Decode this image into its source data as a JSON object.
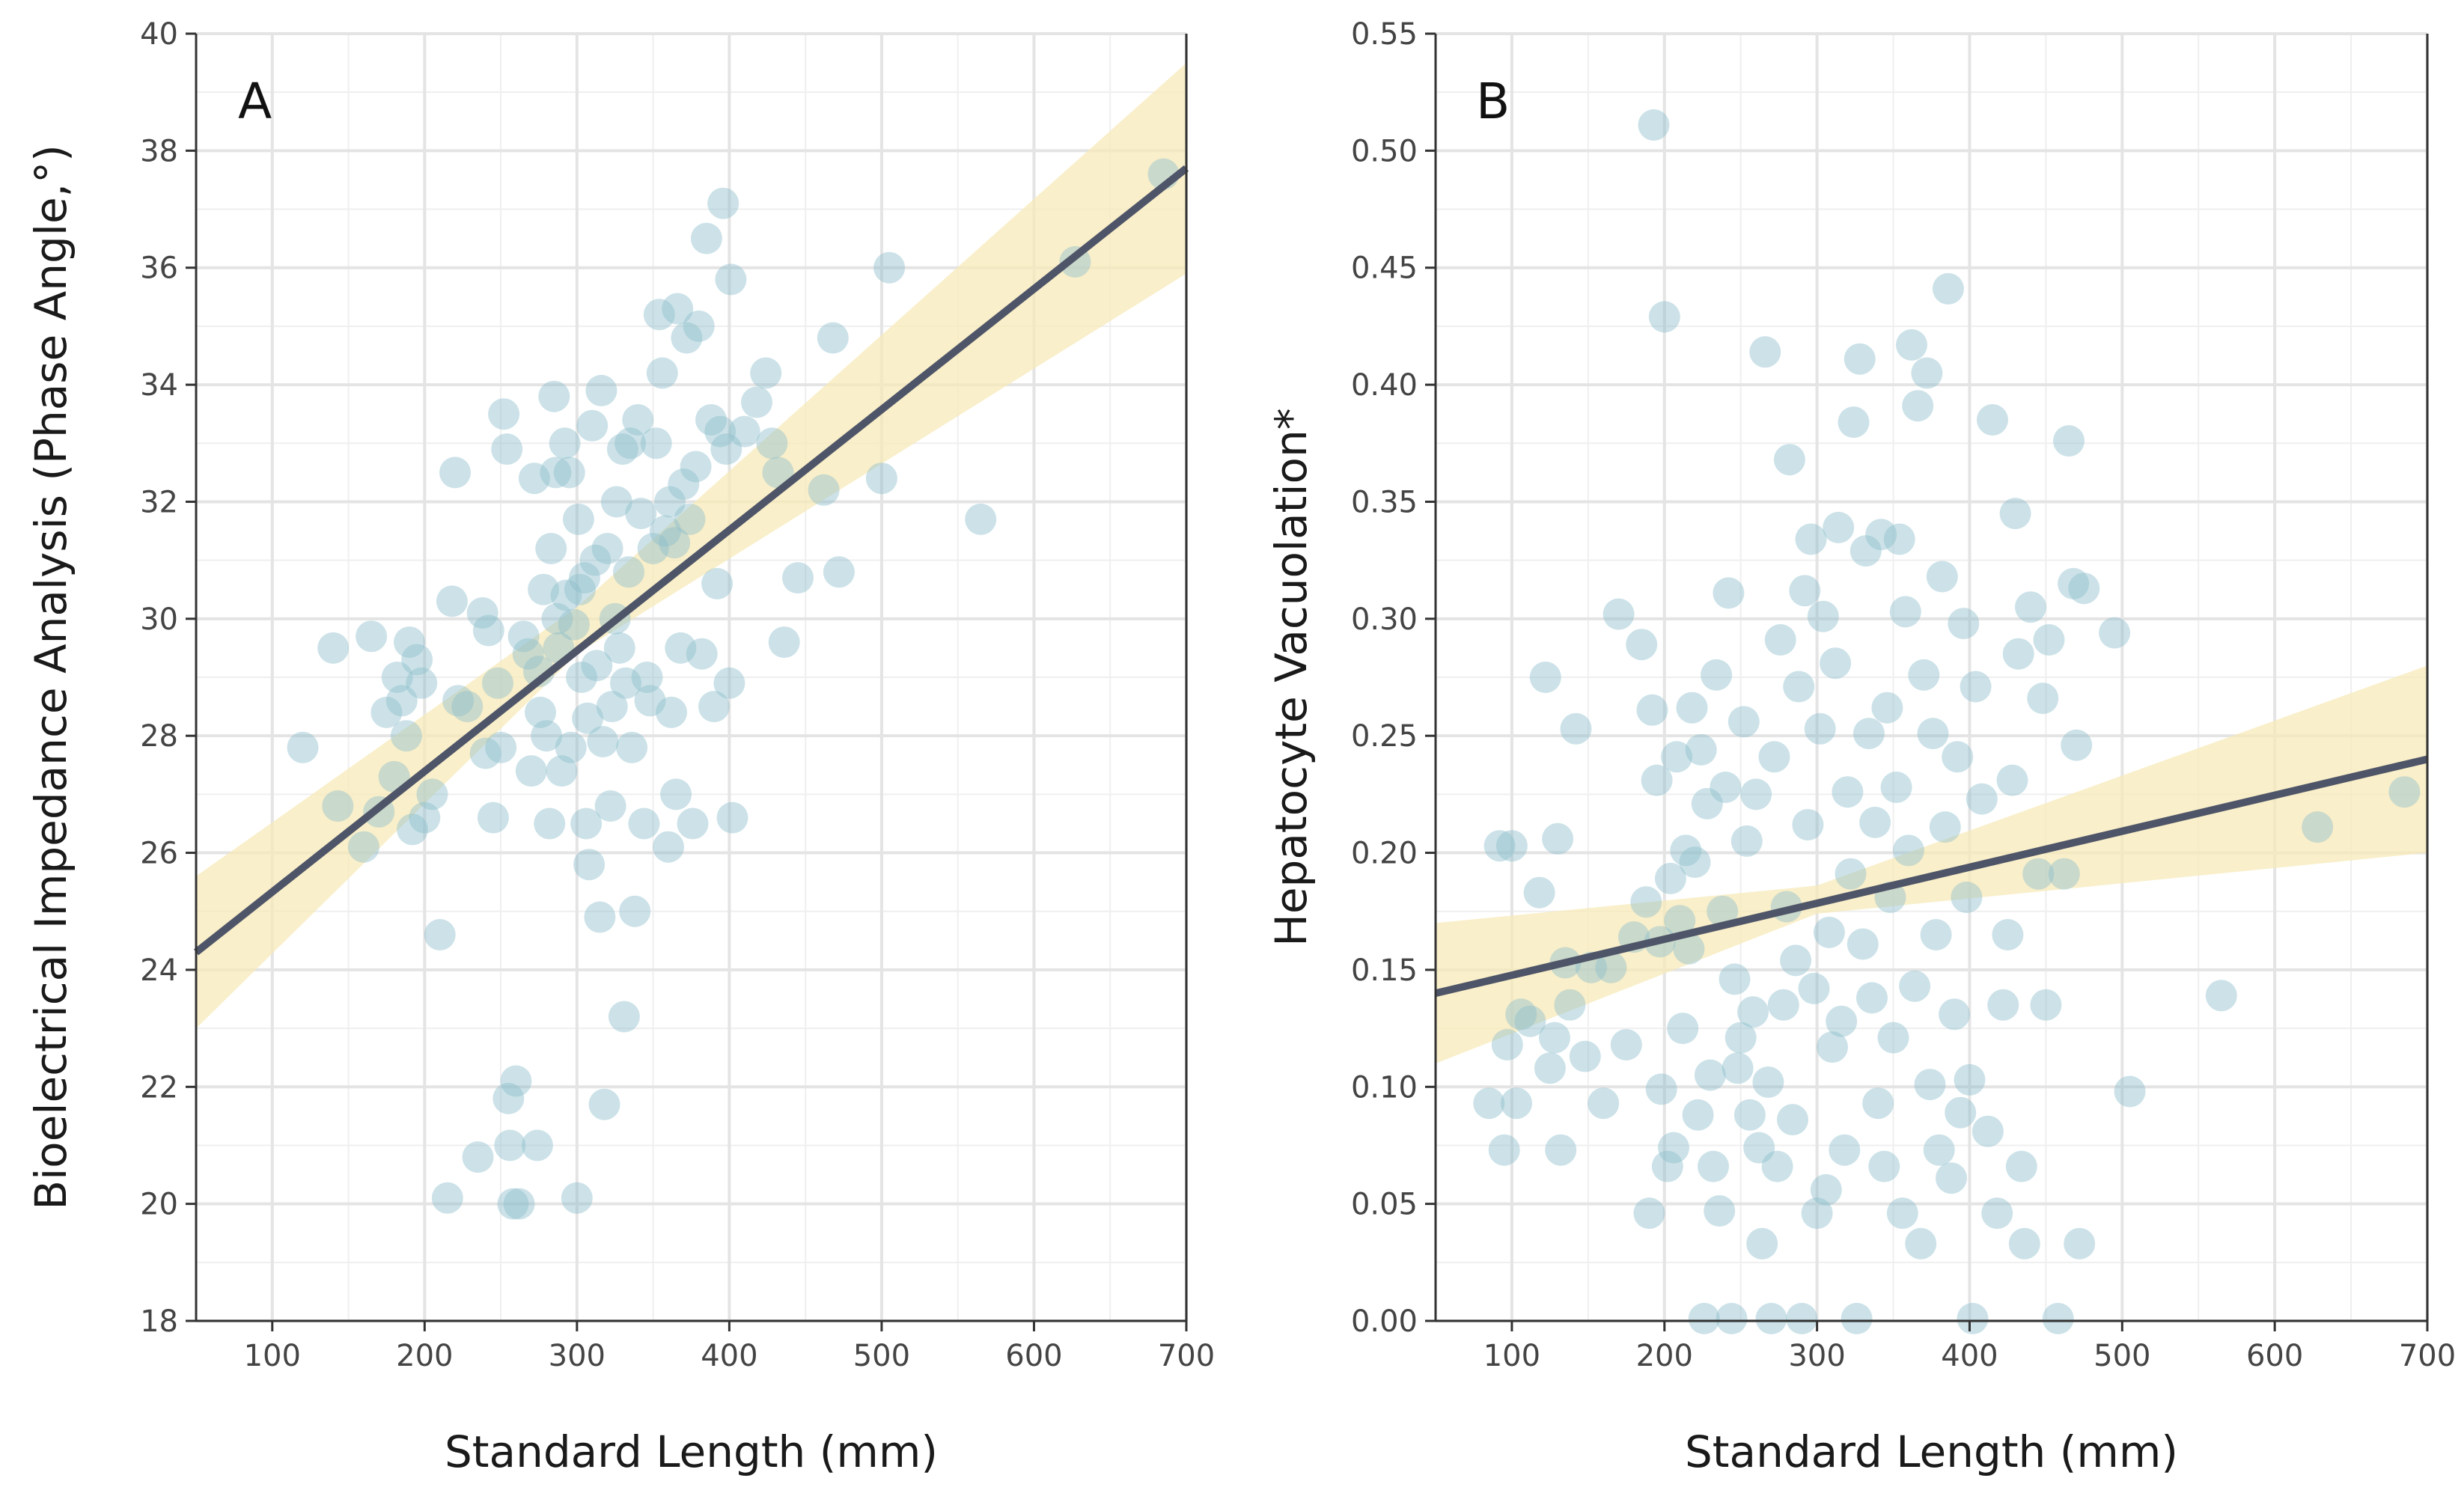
{
  "chart_data": [
    {
      "type": "scatter",
      "panel_label": "A",
      "xlabel": "Standard Length (mm)",
      "ylabel": "Bioelectrical Impedance Analysis (Phase Angle,°)",
      "xlim": [
        50,
        700
      ],
      "ylim": [
        18,
        40
      ],
      "x_ticks": [
        100,
        200,
        300,
        400,
        500,
        600,
        700
      ],
      "y_ticks": [
        18,
        20,
        22,
        24,
        26,
        28,
        30,
        32,
        34,
        36,
        38,
        40
      ],
      "grid": true,
      "point_color": "#8fbfcc",
      "line_color": "#4f5568",
      "band_color": "#f7e9b8",
      "regression": {
        "x": [
          50,
          700
        ],
        "y": [
          24.3,
          37.7
        ]
      },
      "confidence_band": {
        "x": [
          50,
          300,
          700
        ],
        "lower": [
          23.0,
          29.4,
          35.9
        ],
        "upper": [
          25.6,
          30.2,
          39.5
        ]
      },
      "points": [
        [
          120,
          27.8
        ],
        [
          140,
          29.5
        ],
        [
          143,
          26.8
        ],
        [
          160,
          26.1
        ],
        [
          165,
          29.7
        ],
        [
          170,
          26.7
        ],
        [
          175,
          28.4
        ],
        [
          180,
          27.3
        ],
        [
          182,
          29.0
        ],
        [
          185,
          28.6
        ],
        [
          188,
          28.0
        ],
        [
          190,
          29.6
        ],
        [
          192,
          26.4
        ],
        [
          195,
          29.3
        ],
        [
          198,
          28.9
        ],
        [
          200,
          26.6
        ],
        [
          205,
          27.0
        ],
        [
          210,
          24.6
        ],
        [
          215,
          20.1
        ],
        [
          218,
          30.3
        ],
        [
          220,
          32.5
        ],
        [
          222,
          28.6
        ],
        [
          228,
          28.5
        ],
        [
          235,
          20.8
        ],
        [
          238,
          30.1
        ],
        [
          240,
          27.7
        ],
        [
          242,
          29.8
        ],
        [
          245,
          26.6
        ],
        [
          248,
          28.9
        ],
        [
          250,
          27.8
        ],
        [
          252,
          33.5
        ],
        [
          254,
          32.9
        ],
        [
          255,
          21.8
        ],
        [
          256,
          21.0
        ],
        [
          258,
          20.0
        ],
        [
          260,
          22.1
        ],
        [
          262,
          20.0
        ],
        [
          265,
          29.7
        ],
        [
          268,
          29.4
        ],
        [
          270,
          27.4
        ],
        [
          272,
          32.4
        ],
        [
          274,
          21.0
        ],
        [
          275,
          29.1
        ],
        [
          276,
          28.4
        ],
        [
          278,
          30.5
        ],
        [
          280,
          28.0
        ],
        [
          282,
          26.5
        ],
        [
          283,
          31.2
        ],
        [
          285,
          33.8
        ],
        [
          286,
          32.5
        ],
        [
          287,
          30.0
        ],
        [
          288,
          29.5
        ],
        [
          290,
          27.4
        ],
        [
          292,
          33.0
        ],
        [
          293,
          30.4
        ],
        [
          295,
          32.5
        ],
        [
          296,
          27.8
        ],
        [
          298,
          29.9
        ],
        [
          300,
          20.1
        ],
        [
          301,
          31.7
        ],
        [
          302,
          30.5
        ],
        [
          303,
          29.0
        ],
        [
          305,
          30.7
        ],
        [
          306,
          26.5
        ],
        [
          307,
          28.3
        ],
        [
          308,
          25.8
        ],
        [
          310,
          33.3
        ],
        [
          312,
          31.0
        ],
        [
          313,
          29.2
        ],
        [
          315,
          24.9
        ],
        [
          316,
          33.9
        ],
        [
          317,
          27.9
        ],
        [
          318,
          21.7
        ],
        [
          320,
          31.2
        ],
        [
          322,
          26.8
        ],
        [
          323,
          28.5
        ],
        [
          325,
          30.0
        ],
        [
          326,
          32.0
        ],
        [
          328,
          29.5
        ],
        [
          330,
          32.9
        ],
        [
          331,
          23.2
        ],
        [
          332,
          28.9
        ],
        [
          334,
          30.8
        ],
        [
          335,
          33.0
        ],
        [
          336,
          27.8
        ],
        [
          338,
          25.0
        ],
        [
          340,
          33.4
        ],
        [
          342,
          31.8
        ],
        [
          344,
          26.5
        ],
        [
          346,
          29.0
        ],
        [
          348,
          28.6
        ],
        [
          350,
          31.2
        ],
        [
          352,
          33.0
        ],
        [
          354,
          35.2
        ],
        [
          356,
          34.2
        ],
        [
          358,
          31.5
        ],
        [
          360,
          26.1
        ],
        [
          361,
          32.0
        ],
        [
          362,
          28.4
        ],
        [
          364,
          31.3
        ],
        [
          365,
          27.0
        ],
        [
          366,
          35.3
        ],
        [
          368,
          29.5
        ],
        [
          370,
          32.3
        ],
        [
          372,
          34.8
        ],
        [
          374,
          31.7
        ],
        [
          376,
          26.5
        ],
        [
          378,
          32.6
        ],
        [
          380,
          35.0
        ],
        [
          382,
          29.4
        ],
        [
          385,
          36.5
        ],
        [
          388,
          33.4
        ],
        [
          390,
          28.5
        ],
        [
          392,
          30.6
        ],
        [
          394,
          33.2
        ],
        [
          396,
          37.1
        ],
        [
          398,
          32.9
        ],
        [
          400,
          28.9
        ],
        [
          401,
          35.8
        ],
        [
          402,
          26.6
        ],
        [
          410,
          33.2
        ],
        [
          418,
          33.7
        ],
        [
          424,
          34.2
        ],
        [
          428,
          33.0
        ],
        [
          432,
          32.5
        ],
        [
          436,
          29.6
        ],
        [
          445,
          30.7
        ],
        [
          462,
          32.2
        ],
        [
          468,
          34.8
        ],
        [
          472,
          30.8
        ],
        [
          500,
          32.4
        ],
        [
          505,
          36.0
        ],
        [
          565,
          31.7
        ],
        [
          627,
          36.1
        ],
        [
          685,
          37.6
        ]
      ]
    },
    {
      "type": "scatter",
      "panel_label": "B",
      "xlabel": "Standard Length (mm)",
      "ylabel": "Hepatocyte Vacuolation*",
      "xlim": [
        50,
        700
      ],
      "ylim": [
        0,
        0.55
      ],
      "x_ticks": [
        100,
        200,
        300,
        400,
        500,
        600,
        700
      ],
      "y_ticks": [
        0.0,
        0.05,
        0.1,
        0.15,
        0.2,
        0.25,
        0.3,
        0.35,
        0.4,
        0.45,
        0.5,
        0.55
      ],
      "y_tick_labels": [
        "0.00",
        "0.05",
        "0.10",
        "0.15",
        "0.20",
        "0.25",
        "0.30",
        "0.35",
        "0.40",
        "0.45",
        "0.50",
        "0.55"
      ],
      "grid": true,
      "point_color": "#8fbfcc",
      "line_color": "#4f5568",
      "band_color": "#f7e9b8",
      "regression": {
        "x": [
          50,
          700
        ],
        "y": [
          0.14,
          0.24
        ]
      },
      "confidence_band": {
        "x": [
          50,
          300,
          700
        ],
        "lower": [
          0.11,
          0.174,
          0.2
        ],
        "upper": [
          0.17,
          0.186,
          0.28
        ]
      },
      "points": [
        [
          85,
          0.093
        ],
        [
          92,
          0.203
        ],
        [
          95,
          0.073
        ],
        [
          97,
          0.118
        ],
        [
          100,
          0.203
        ],
        [
          103,
          0.093
        ],
        [
          106,
          0.131
        ],
        [
          112,
          0.128
        ],
        [
          118,
          0.183
        ],
        [
          122,
          0.275
        ],
        [
          125,
          0.108
        ],
        [
          128,
          0.121
        ],
        [
          130,
          0.206
        ],
        [
          132,
          0.073
        ],
        [
          135,
          0.153
        ],
        [
          138,
          0.135
        ],
        [
          142,
          0.253
        ],
        [
          148,
          0.113
        ],
        [
          152,
          0.151
        ],
        [
          160,
          0.093
        ],
        [
          165,
          0.151
        ],
        [
          170,
          0.302
        ],
        [
          175,
          0.118
        ],
        [
          180,
          0.164
        ],
        [
          185,
          0.289
        ],
        [
          188,
          0.179
        ],
        [
          190,
          0.046
        ],
        [
          192,
          0.261
        ],
        [
          193,
          0.511
        ],
        [
          195,
          0.231
        ],
        [
          197,
          0.162
        ],
        [
          198,
          0.099
        ],
        [
          200,
          0.429
        ],
        [
          202,
          0.066
        ],
        [
          204,
          0.189
        ],
        [
          206,
          0.074
        ],
        [
          208,
          0.241
        ],
        [
          210,
          0.171
        ],
        [
          212,
          0.125
        ],
        [
          214,
          0.201
        ],
        [
          216,
          0.159
        ],
        [
          218,
          0.262
        ],
        [
          220,
          0.196
        ],
        [
          222,
          0.088
        ],
        [
          224,
          0.244
        ],
        [
          226,
          0.001
        ],
        [
          228,
          0.221
        ],
        [
          230,
          0.105
        ],
        [
          232,
          0.066
        ],
        [
          234,
          0.276
        ],
        [
          236,
          0.047
        ],
        [
          238,
          0.175
        ],
        [
          240,
          0.228
        ],
        [
          242,
          0.311
        ],
        [
          244,
          0.001
        ],
        [
          246,
          0.146
        ],
        [
          248,
          0.108
        ],
        [
          250,
          0.121
        ],
        [
          252,
          0.256
        ],
        [
          254,
          0.205
        ],
        [
          256,
          0.088
        ],
        [
          258,
          0.132
        ],
        [
          260,
          0.225
        ],
        [
          262,
          0.074
        ],
        [
          264,
          0.033
        ],
        [
          266,
          0.414
        ],
        [
          268,
          0.102
        ],
        [
          270,
          0.001
        ],
        [
          272,
          0.241
        ],
        [
          274,
          0.066
        ],
        [
          276,
          0.291
        ],
        [
          278,
          0.135
        ],
        [
          280,
          0.177
        ],
        [
          282,
          0.368
        ],
        [
          284,
          0.086
        ],
        [
          286,
          0.154
        ],
        [
          288,
          0.271
        ],
        [
          290,
          0.001
        ],
        [
          292,
          0.312
        ],
        [
          294,
          0.212
        ],
        [
          296,
          0.334
        ],
        [
          298,
          0.142
        ],
        [
          300,
          0.046
        ],
        [
          302,
          0.253
        ],
        [
          304,
          0.301
        ],
        [
          306,
          0.056
        ],
        [
          308,
          0.166
        ],
        [
          310,
          0.117
        ],
        [
          312,
          0.281
        ],
        [
          314,
          0.339
        ],
        [
          316,
          0.128
        ],
        [
          318,
          0.073
        ],
        [
          320,
          0.226
        ],
        [
          322,
          0.191
        ],
        [
          324,
          0.384
        ],
        [
          326,
          0.001
        ],
        [
          328,
          0.411
        ],
        [
          330,
          0.161
        ],
        [
          332,
          0.329
        ],
        [
          334,
          0.251
        ],
        [
          336,
          0.138
        ],
        [
          338,
          0.213
        ],
        [
          340,
          0.093
        ],
        [
          342,
          0.336
        ],
        [
          344,
          0.066
        ],
        [
          346,
          0.262
        ],
        [
          348,
          0.181
        ],
        [
          350,
          0.121
        ],
        [
          352,
          0.228
        ],
        [
          354,
          0.334
        ],
        [
          356,
          0.046
        ],
        [
          358,
          0.303
        ],
        [
          360,
          0.201
        ],
        [
          362,
          0.417
        ],
        [
          364,
          0.143
        ],
        [
          366,
          0.391
        ],
        [
          368,
          0.033
        ],
        [
          370,
          0.276
        ],
        [
          372,
          0.405
        ],
        [
          374,
          0.101
        ],
        [
          376,
          0.251
        ],
        [
          378,
          0.165
        ],
        [
          380,
          0.073
        ],
        [
          382,
          0.318
        ],
        [
          384,
          0.211
        ],
        [
          386,
          0.441
        ],
        [
          388,
          0.061
        ],
        [
          390,
          0.131
        ],
        [
          392,
          0.241
        ],
        [
          394,
          0.089
        ],
        [
          396,
          0.298
        ],
        [
          398,
          0.181
        ],
        [
          400,
          0.103
        ],
        [
          402,
          0.001
        ],
        [
          404,
          0.271
        ],
        [
          408,
          0.223
        ],
        [
          412,
          0.081
        ],
        [
          415,
          0.385
        ],
        [
          418,
          0.046
        ],
        [
          422,
          0.135
        ],
        [
          425,
          0.165
        ],
        [
          428,
          0.231
        ],
        [
          430,
          0.345
        ],
        [
          432,
          0.285
        ],
        [
          434,
          0.066
        ],
        [
          436,
          0.033
        ],
        [
          440,
          0.305
        ],
        [
          445,
          0.191
        ],
        [
          448,
          0.266
        ],
        [
          450,
          0.135
        ],
        [
          452,
          0.291
        ],
        [
          458,
          0.001
        ],
        [
          462,
          0.191
        ],
        [
          465,
          0.376
        ],
        [
          468,
          0.315
        ],
        [
          470,
          0.246
        ],
        [
          472,
          0.033
        ],
        [
          475,
          0.313
        ],
        [
          495,
          0.294
        ],
        [
          505,
          0.098
        ],
        [
          565,
          0.139
        ],
        [
          628,
          0.211
        ],
        [
          685,
          0.226
        ]
      ]
    }
  ]
}
